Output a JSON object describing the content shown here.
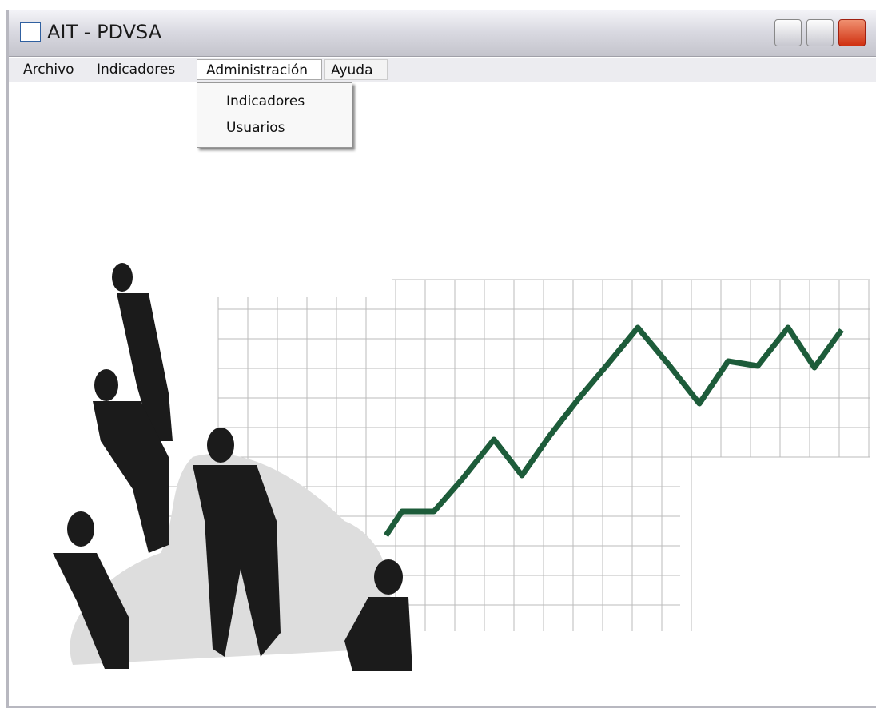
{
  "window": {
    "title": "AIT - PDVSA"
  },
  "menu": {
    "items": [
      "Archivo",
      "Indicadores",
      "Administración",
      "Ayuda"
    ],
    "open_menu": {
      "items": [
        "Indicadores",
        "Usuarios"
      ]
    }
  }
}
